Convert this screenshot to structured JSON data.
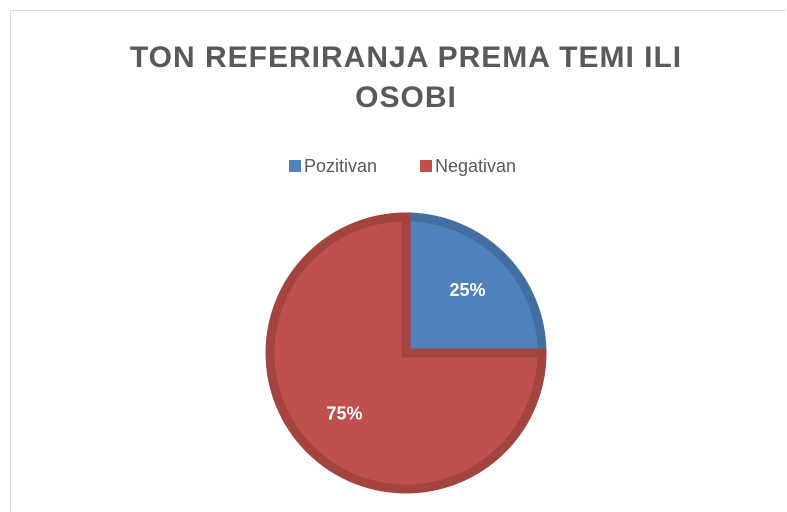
{
  "chart_data": {
    "type": "pie",
    "title": "TON REFERIRANJA PREMA TEMI ILI OSOBI",
    "categories": [
      "Pozitivan",
      "Negativan"
    ],
    "values": [
      25,
      75
    ],
    "value_labels": [
      "25%",
      "75%"
    ],
    "colors": [
      "#4f81bd",
      "#c0504d"
    ],
    "legend": "top"
  }
}
